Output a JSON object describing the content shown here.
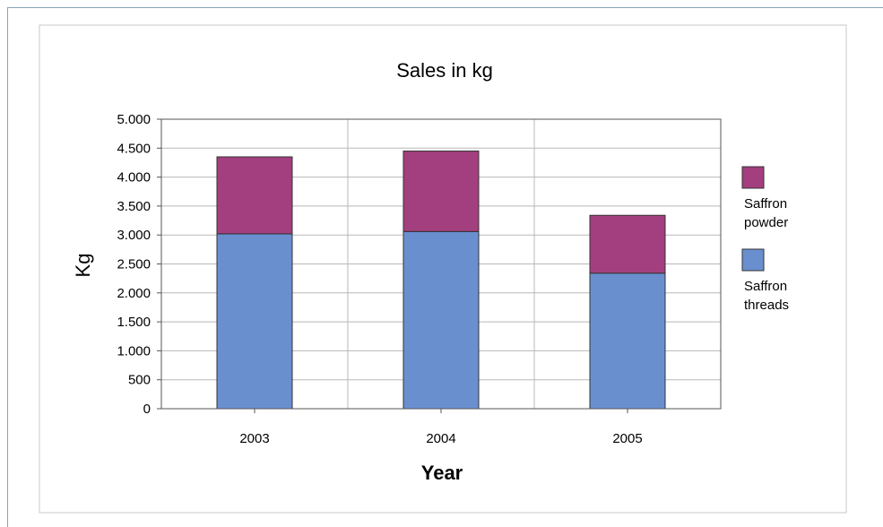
{
  "chart_data": {
    "type": "bar",
    "stacked": true,
    "title": "Sales in kg",
    "xlabel": "Year",
    "ylabel": "Kg",
    "categories": [
      "2003",
      "2004",
      "2005"
    ],
    "series": [
      {
        "name": "Saffron threads",
        "legend_lines": [
          "Saffron",
          "threads"
        ],
        "values": [
          3020,
          3060,
          2340
        ],
        "color": "#6a8fcf"
      },
      {
        "name": "Saffron powder",
        "legend_lines": [
          "Saffron",
          "powder"
        ],
        "values": [
          1330,
          1390,
          1000
        ],
        "color": "#a33f7f"
      }
    ],
    "ylim": [
      0,
      5000
    ],
    "yticks": [
      0,
      500,
      1000,
      1500,
      2000,
      2500,
      3000,
      3500,
      4000,
      4500,
      5000
    ],
    "ytick_labels": [
      "0",
      "500",
      "1.000",
      "1.500",
      "2.000",
      "2.500",
      "3.000",
      "3.500",
      "4.000",
      "4.500",
      "5.000"
    ],
    "grid": true,
    "legend_position": "right"
  }
}
